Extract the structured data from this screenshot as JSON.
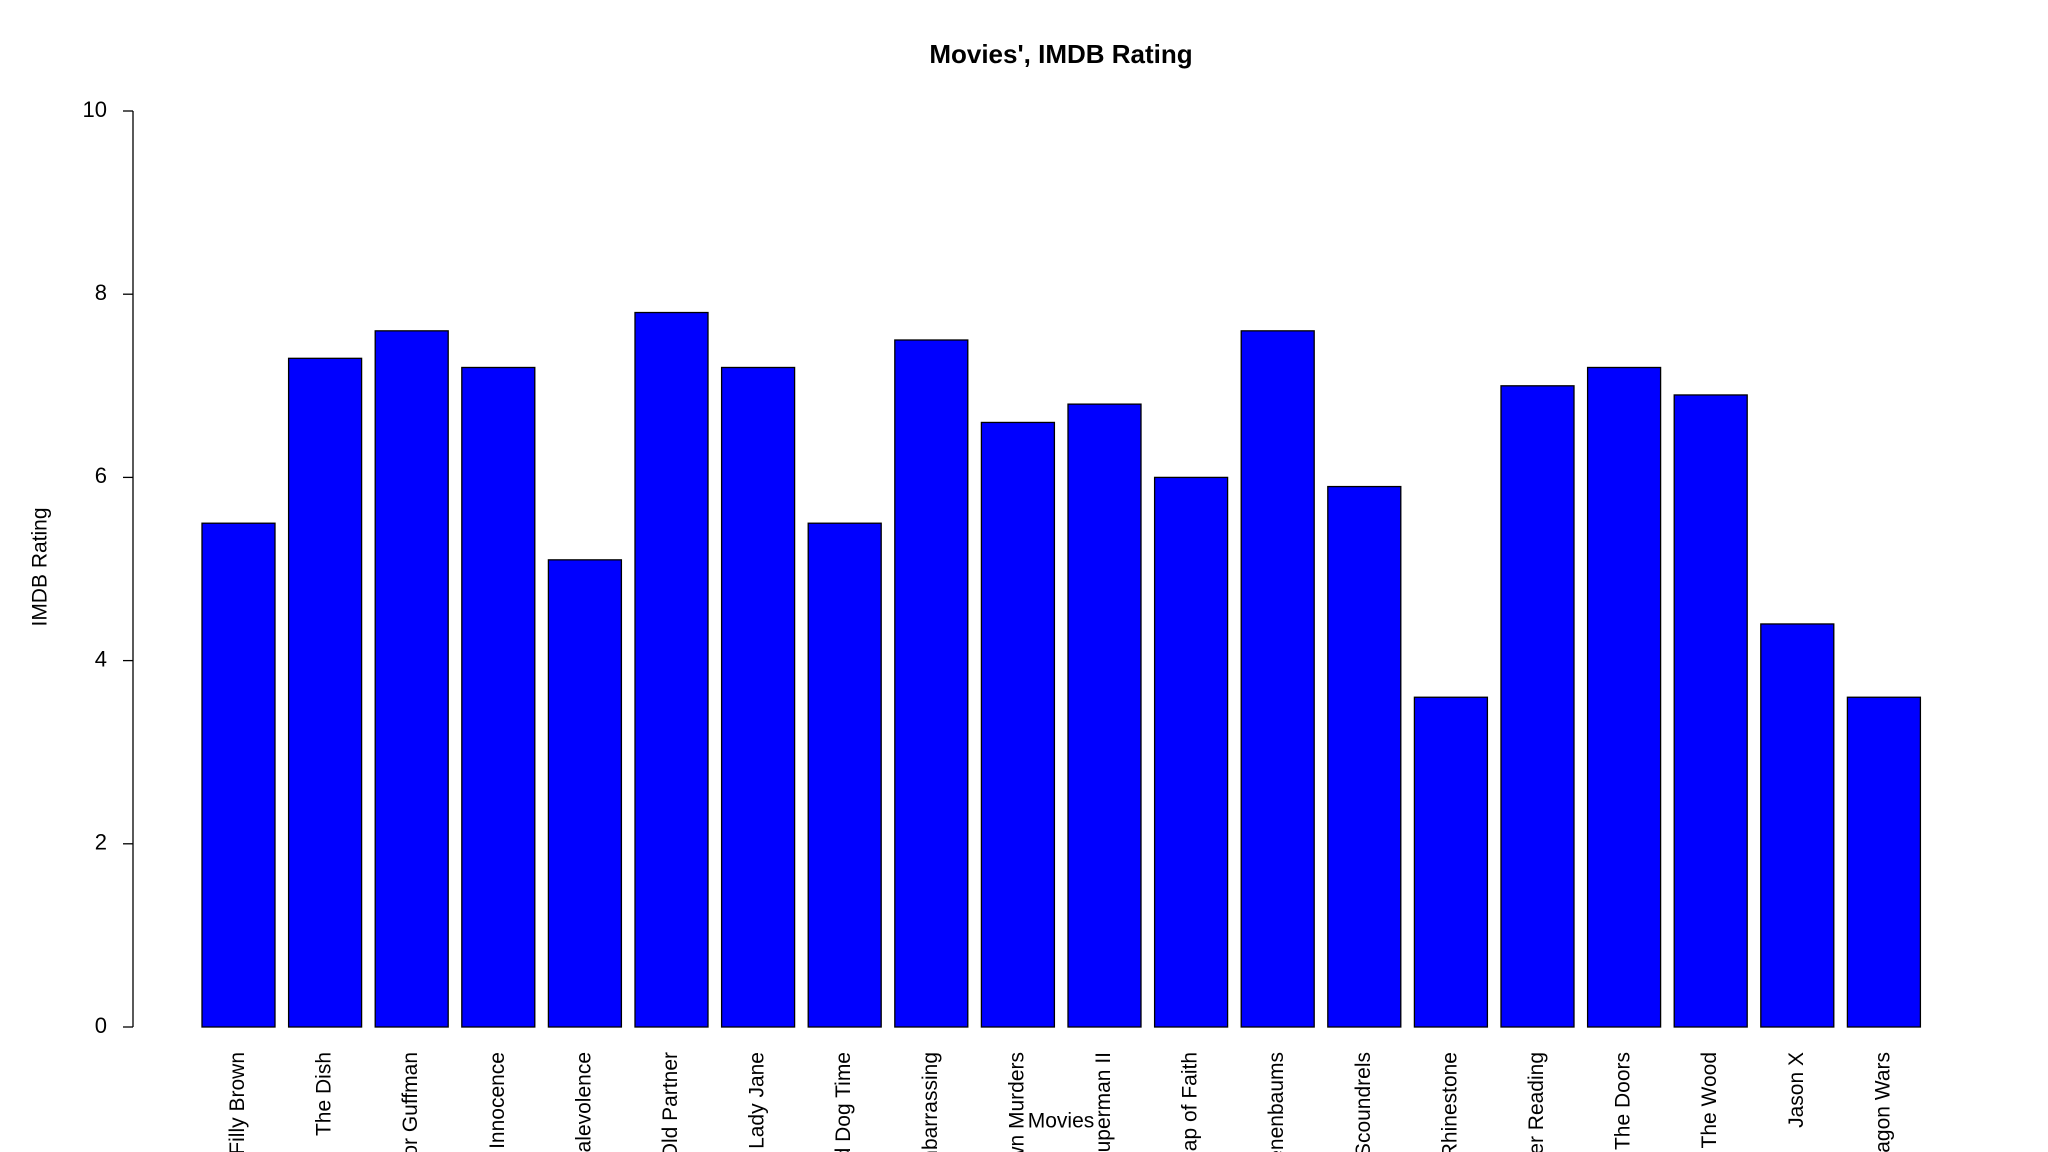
{
  "chart_data": {
    "type": "bar",
    "title": "Movies', IMDB Rating",
    "x_label": "Movies",
    "y_label": "IMDB Rating",
    "categories": [
      "Filly Brown",
      "The Dish",
      "for Guffman",
      "f Innocence",
      "alevolence",
      "Old Partner",
      "Lady Jane",
      "d Dog Time",
      "nbarrassing",
      "wn Murders",
      "Superman II",
      "eap of Faith",
      "enenbaums",
      "Scoundrels",
      "Rhinestone",
      "er Reading",
      "The Doors",
      "The Wood",
      "Jason X",
      "ragon Wars"
    ],
    "values": [
      5.5,
      7.3,
      7.6,
      7.2,
      5.1,
      7.8,
      7.2,
      5.5,
      7.5,
      6.6,
      6.8,
      6.0,
      7.6,
      5.9,
      3.6,
      7.0,
      7.2,
      6.9,
      4.4,
      3.6
    ],
    "color": "#0000ff",
    "ylim": [
      0,
      10
    ],
    "yticks": [
      0,
      2,
      4,
      6,
      8,
      10
    ],
    "grid": false
  }
}
